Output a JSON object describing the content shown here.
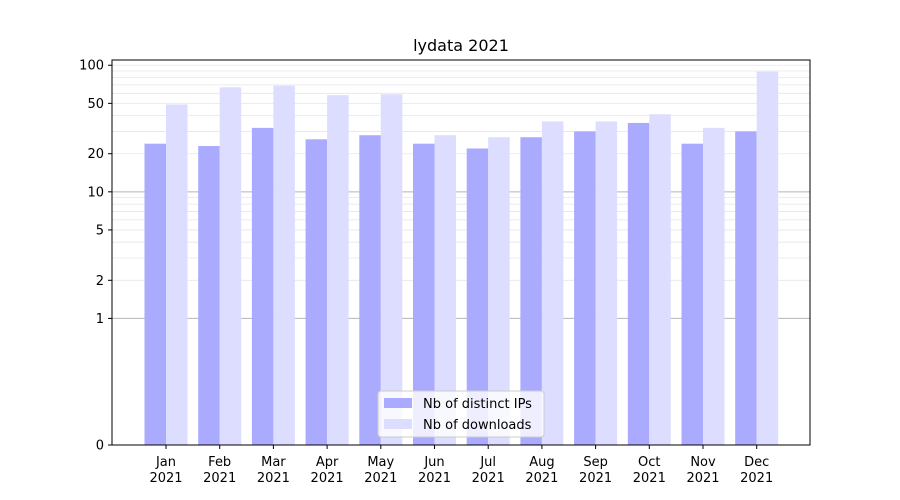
{
  "chart_data": {
    "type": "bar",
    "title": "lydata 2021",
    "xlabel": "",
    "ylabel": "",
    "y_scale": "symlog",
    "ylim": [
      0,
      110
    ],
    "yticks": [
      0,
      1,
      2,
      5,
      10,
      20,
      50,
      100
    ],
    "categories": [
      {
        "month": "Jan",
        "year": "2021"
      },
      {
        "month": "Feb",
        "year": "2021"
      },
      {
        "month": "Mar",
        "year": "2021"
      },
      {
        "month": "Apr",
        "year": "2021"
      },
      {
        "month": "May",
        "year": "2021"
      },
      {
        "month": "Jun",
        "year": "2021"
      },
      {
        "month": "Jul",
        "year": "2021"
      },
      {
        "month": "Aug",
        "year": "2021"
      },
      {
        "month": "Sep",
        "year": "2021"
      },
      {
        "month": "Oct",
        "year": "2021"
      },
      {
        "month": "Nov",
        "year": "2021"
      },
      {
        "month": "Dec",
        "year": "2021"
      }
    ],
    "series": [
      {
        "name": "Nb of distinct IPs",
        "color": "#aaaaff",
        "values": [
          24,
          23,
          32,
          26,
          28,
          24,
          22,
          27,
          30,
          35,
          24,
          30
        ]
      },
      {
        "name": "Nb of downloads",
        "color": "#ddddff",
        "values": [
          49,
          67,
          69,
          58,
          59,
          28,
          27,
          36,
          36,
          41,
          32,
          89
        ]
      }
    ],
    "legend_position": "bottom-center",
    "grid": true
  }
}
